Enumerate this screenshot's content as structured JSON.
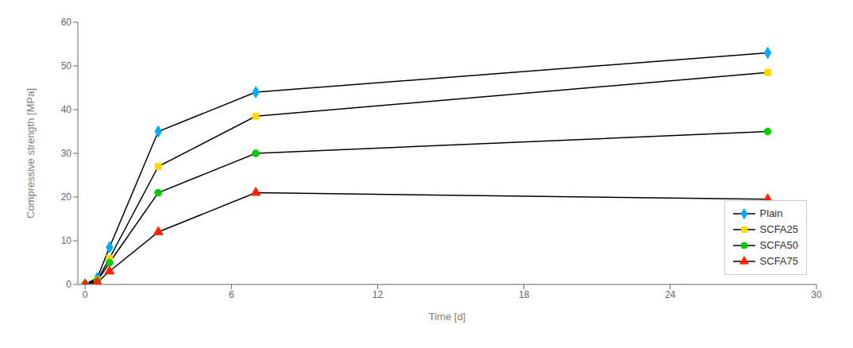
{
  "chart_data": {
    "type": "line",
    "x_label": "Time [d]",
    "y_label": "Compressive strength [MPa]",
    "color": "black",
    "series": [
      {
        "name": "Plain",
        "color": "#00AAFF",
        "marker": "diamond",
        "x": [
          0,
          0.5,
          1,
          3,
          7,
          28
        ],
        "values": [
          0,
          1.5,
          8.5,
          35,
          44,
          53
        ]
      },
      {
        "name": "SCFA25",
        "color": "#FFD700",
        "marker": "square",
        "x": [
          0,
          0.5,
          1,
          3,
          7,
          28
        ],
        "values": [
          0,
          1.0,
          6,
          27,
          38.5,
          48.5
        ]
      },
      {
        "name": "SCFA50",
        "color": "#00CC00",
        "marker": "circle",
        "x": [
          0,
          0.5,
          1,
          3,
          7,
          28
        ],
        "values": [
          0,
          0.8,
          5,
          21,
          30,
          35
        ]
      },
      {
        "name": "SCFA75",
        "color": "#FF2200",
        "marker": "triangle",
        "x": [
          0,
          0.5,
          1,
          3,
          7,
          28
        ],
        "values": [
          0,
          0.5,
          3,
          12,
          21,
          19.5
        ]
      }
    ],
    "xlim": [
      -0.3,
      30
    ],
    "ylim": [
      0,
      60
    ],
    "xticks": [
      0,
      6,
      12,
      18,
      24,
      30
    ],
    "yticks": [
      0,
      10,
      20,
      30,
      40,
      50,
      60
    ],
    "grid": false,
    "legend": "lower right"
  }
}
